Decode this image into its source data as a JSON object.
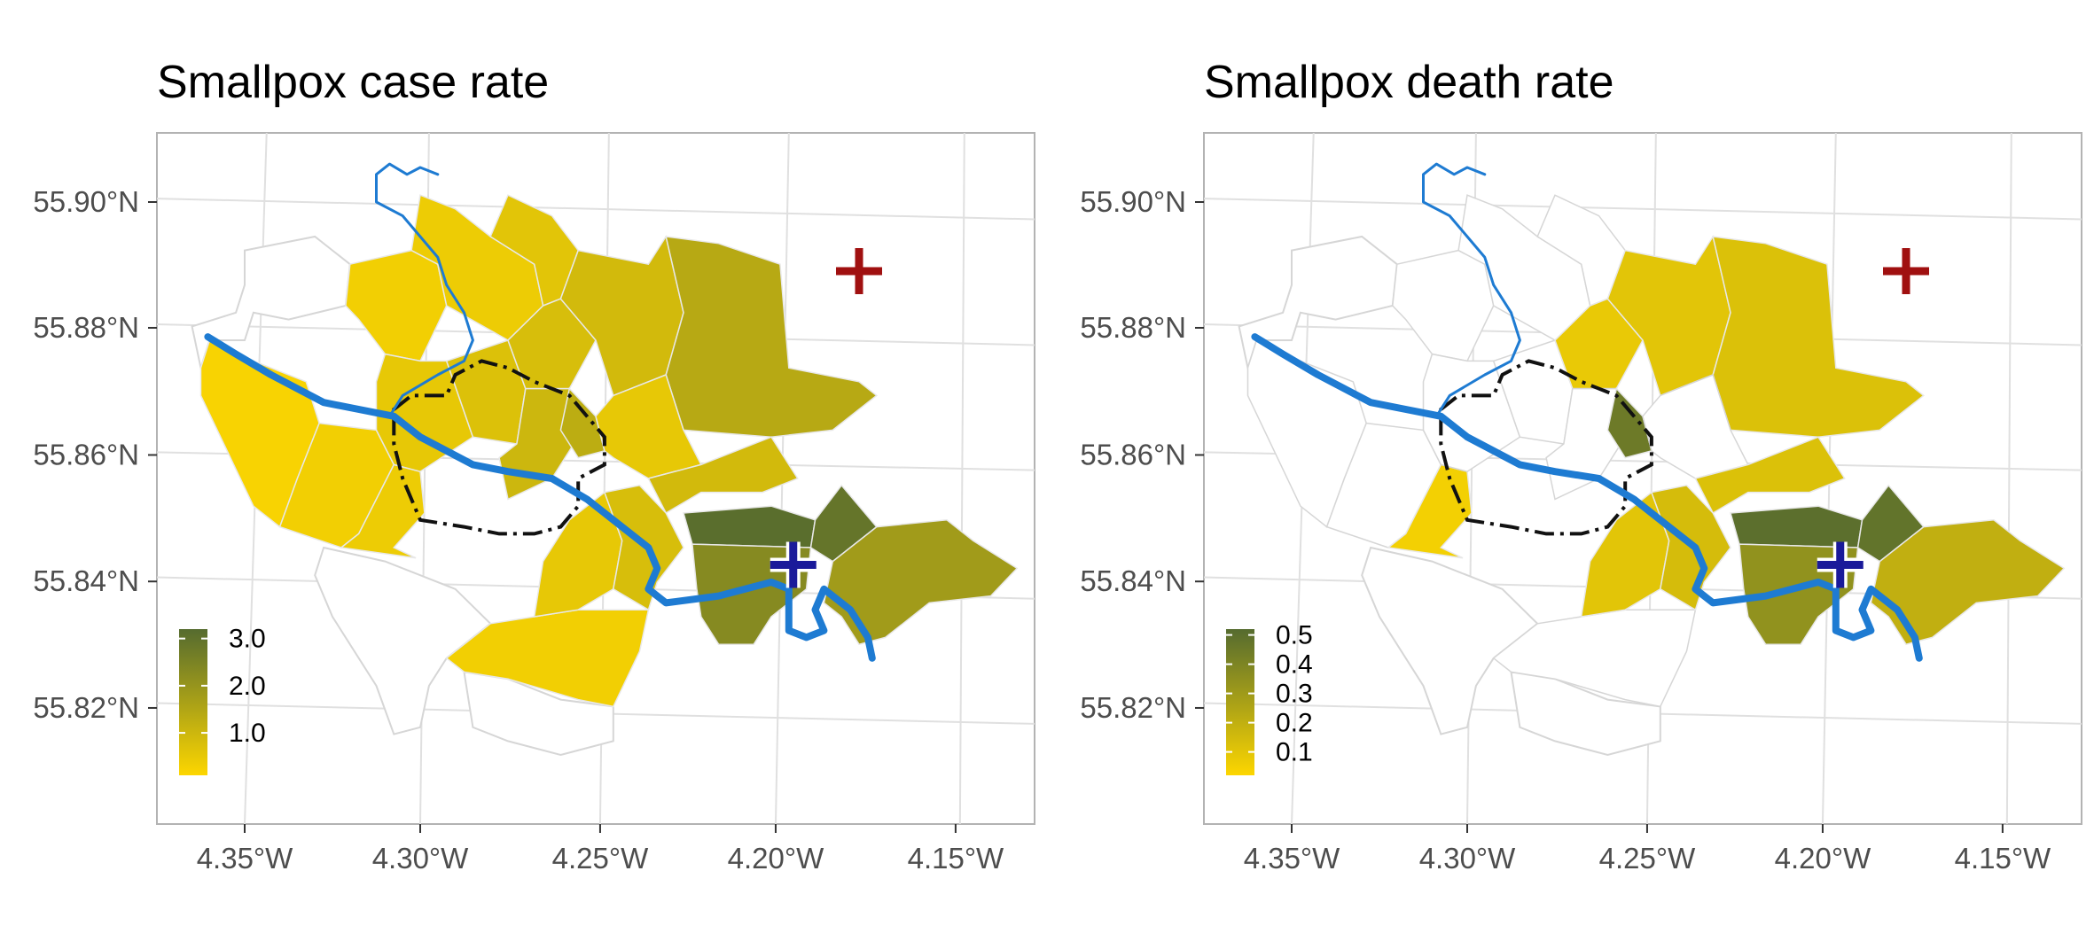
{
  "chart_data": [
    {
      "type": "heatmap",
      "subtype": "choropleth-map",
      "title": "Smallpox case rate",
      "xlabel": "",
      "ylabel": "",
      "x_ticks": [
        "4.35°W",
        "4.30°W",
        "4.25°W",
        "4.20°W",
        "4.15°W"
      ],
      "y_ticks": [
        "55.90°N",
        "55.88°N",
        "55.86°N",
        "55.84°N",
        "55.82°N"
      ],
      "xlim": [
        -4.375,
        -4.127
      ],
      "ylim": [
        55.8,
        55.91
      ],
      "grid": true,
      "legend": {
        "position": "bottom-left",
        "labels": [
          "3.0",
          "2.0",
          "1.0"
        ],
        "values": [
          3.0,
          2.0,
          1.0
        ],
        "range": [
          0.1,
          3.2
        ],
        "color_low": "#fdd600",
        "color_high": "#556b2f"
      },
      "districts": [
        {
          "id": "west-1",
          "value": 0.2
        },
        {
          "id": "west-2",
          "value": 0.3
        },
        {
          "id": "west-3",
          "value": 0.4
        },
        {
          "id": "north-1",
          "value": 0.3
        },
        {
          "id": "north-2",
          "value": 0.4
        },
        {
          "id": "north-3",
          "value": 0.6
        },
        {
          "id": "central-1",
          "value": 0.5
        },
        {
          "id": "central-2",
          "value": 0.7
        },
        {
          "id": "central-3",
          "value": 0.8
        },
        {
          "id": "central-4",
          "value": 1.0
        },
        {
          "id": "central-5",
          "value": 1.3
        },
        {
          "id": "northeast-1",
          "value": 0.9
        },
        {
          "id": "northeast-2",
          "value": 1.4
        },
        {
          "id": "east-1",
          "value": 0.5
        },
        {
          "id": "east-2",
          "value": 0.9
        },
        {
          "id": "south-1",
          "value": 0.3
        },
        {
          "id": "south-2",
          "value": 0.5
        },
        {
          "id": "south-3",
          "value": 0.8
        },
        {
          "id": "southeast-1",
          "value": 3.1
        },
        {
          "id": "southeast-2",
          "value": 2.9
        },
        {
          "id": "southeast-3",
          "value": 2.3
        },
        {
          "id": "southeast-4",
          "value": 1.8
        }
      ],
      "markers": [
        {
          "name": "blue-cross",
          "lon": -4.195,
          "lat": 55.842,
          "color": "#1a1a9a"
        },
        {
          "name": "red-cross",
          "lon": -4.177,
          "lat": 55.889,
          "color": "#a01010"
        }
      ],
      "river_color": "#1e7bd2"
    },
    {
      "type": "heatmap",
      "subtype": "choropleth-map",
      "title": "Smallpox death rate",
      "xlabel": "",
      "ylabel": "",
      "x_ticks": [
        "4.35°W",
        "4.30°W",
        "4.25°W",
        "4.20°W",
        "4.15°W"
      ],
      "y_ticks": [
        "55.90°N",
        "55.88°N",
        "55.86°N",
        "55.84°N",
        "55.82°N"
      ],
      "xlim": [
        -4.375,
        -4.127
      ],
      "ylim": [
        55.8,
        55.91
      ],
      "grid": true,
      "legend": {
        "position": "bottom-left",
        "labels": [
          "0.5",
          "0.4",
          "0.3",
          "0.2",
          "0.1"
        ],
        "values": [
          0.5,
          0.4,
          0.3,
          0.2,
          0.1
        ],
        "range": [
          0.02,
          0.52
        ],
        "color_low": "#fdd600",
        "color_high": "#556b2f"
      },
      "districts": [
        {
          "id": "west-1",
          "value": null
        },
        {
          "id": "west-2",
          "value": null
        },
        {
          "id": "west-3",
          "value": 0.05
        },
        {
          "id": "north-1",
          "value": null
        },
        {
          "id": "north-2",
          "value": null
        },
        {
          "id": "north-3",
          "value": null
        },
        {
          "id": "central-1",
          "value": null
        },
        {
          "id": "central-2",
          "value": null
        },
        {
          "id": "central-3",
          "value": 0.08
        },
        {
          "id": "central-4",
          "value": null
        },
        {
          "id": "central-5",
          "value": 0.45
        },
        {
          "id": "northeast-1",
          "value": 0.1
        },
        {
          "id": "northeast-2",
          "value": 0.12
        },
        {
          "id": "east-1",
          "value": null
        },
        {
          "id": "east-2",
          "value": 0.12
        },
        {
          "id": "south-1",
          "value": null
        },
        {
          "id": "south-2",
          "value": 0.1
        },
        {
          "id": "south-3",
          "value": 0.14
        },
        {
          "id": "southeast-1",
          "value": 0.5
        },
        {
          "id": "southeast-2",
          "value": 0.48
        },
        {
          "id": "southeast-3",
          "value": 0.34
        },
        {
          "id": "southeast-4",
          "value": 0.2
        }
      ],
      "markers": [
        {
          "name": "blue-cross",
          "lon": -4.195,
          "lat": 55.842,
          "color": "#1a1a9a"
        },
        {
          "name": "red-cross",
          "lon": -4.177,
          "lat": 55.889,
          "color": "#a01010"
        }
      ],
      "river_color": "#1e7bd2"
    }
  ]
}
